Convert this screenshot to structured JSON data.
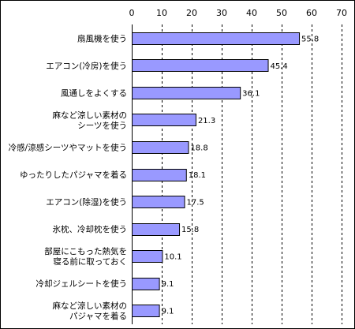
{
  "chart_data": {
    "type": "bar",
    "orientation": "horizontal",
    "categories": [
      [
        "扇風機を使う"
      ],
      [
        "エアコン(冷房)を使う"
      ],
      [
        "風通しをよくする"
      ],
      [
        "麻など涼しい素材の",
        "シーツを使う"
      ],
      [
        "冷感/涼感シーツやマットを使う"
      ],
      [
        "ゆったりしたパジャマを着る"
      ],
      [
        "エアコン(除湿)を使う"
      ],
      [
        "氷枕、冷却枕を使う"
      ],
      [
        "部屋にこもった熱気を",
        "寝る前に取っておく"
      ],
      [
        "冷却ジェルシートを使う"
      ],
      [
        "麻など涼しい素材の",
        "パジャマを着る"
      ]
    ],
    "values": [
      55.8,
      45.4,
      36.1,
      21.3,
      18.8,
      18.1,
      17.5,
      15.8,
      10.1,
      9.1,
      9.1
    ],
    "value_labels": [
      "55.8",
      "45.4",
      "36.1",
      "21.3",
      "18.8",
      "18.1",
      "17.5",
      "15.8",
      "10.1",
      "9.1",
      "9.1"
    ],
    "xlim": [
      0,
      70
    ],
    "ticks": [
      0,
      10,
      20,
      30,
      40,
      50,
      60,
      70
    ],
    "tick_labels": [
      "0",
      "10",
      "20",
      "30",
      "40",
      "50",
      "60",
      "70"
    ],
    "axis_position": "top",
    "grid": "vertical dashed",
    "title": "",
    "xlabel": "",
    "ylabel": "",
    "colors": {
      "bar_fill": "#9999ff",
      "bar_stroke": "#000000",
      "grid": "#000000",
      "text": "#000000"
    }
  }
}
